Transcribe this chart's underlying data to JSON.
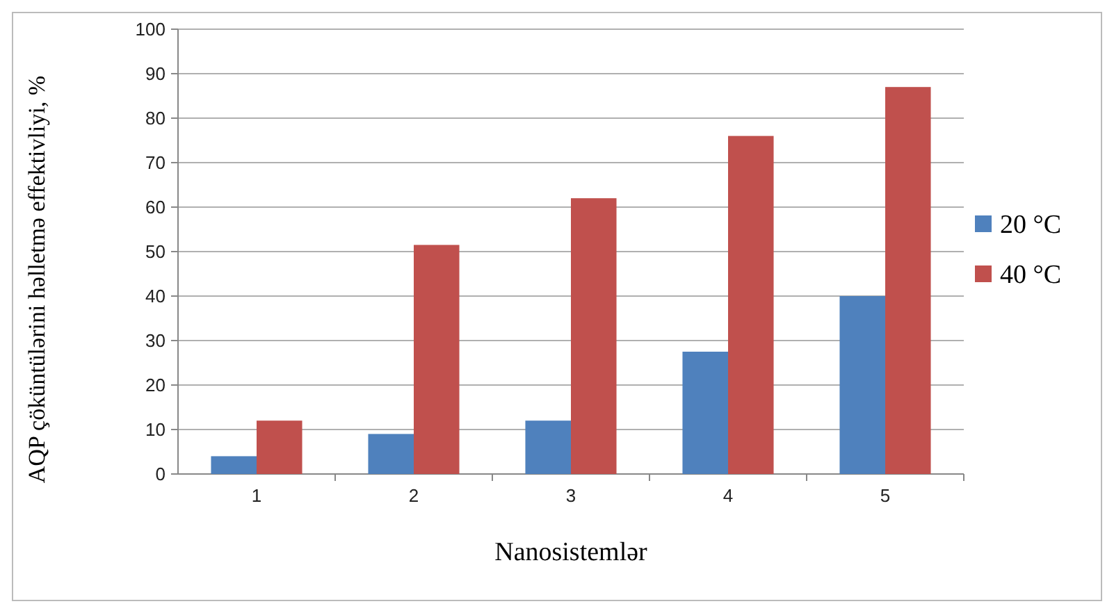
{
  "chart_data": {
    "type": "bar",
    "xlabel": "Nanosistemlər",
    "ylabel": "AQP çöküntülərini həlletmə effektivliyi, %",
    "categories": [
      "1",
      "2",
      "3",
      "4",
      "5"
    ],
    "series": [
      {
        "name": "20 °C",
        "color": "#4f81bd",
        "values": [
          4,
          9,
          12,
          27.5,
          40
        ]
      },
      {
        "name": "40 °C",
        "color": "#c0504d",
        "values": [
          12,
          51.5,
          62,
          76,
          87
        ]
      }
    ],
    "ylim": [
      0,
      100
    ],
    "yticks": [
      0,
      10,
      20,
      30,
      40,
      50,
      60,
      70,
      80,
      90,
      100
    ],
    "grid": "y",
    "legend": "right"
  }
}
